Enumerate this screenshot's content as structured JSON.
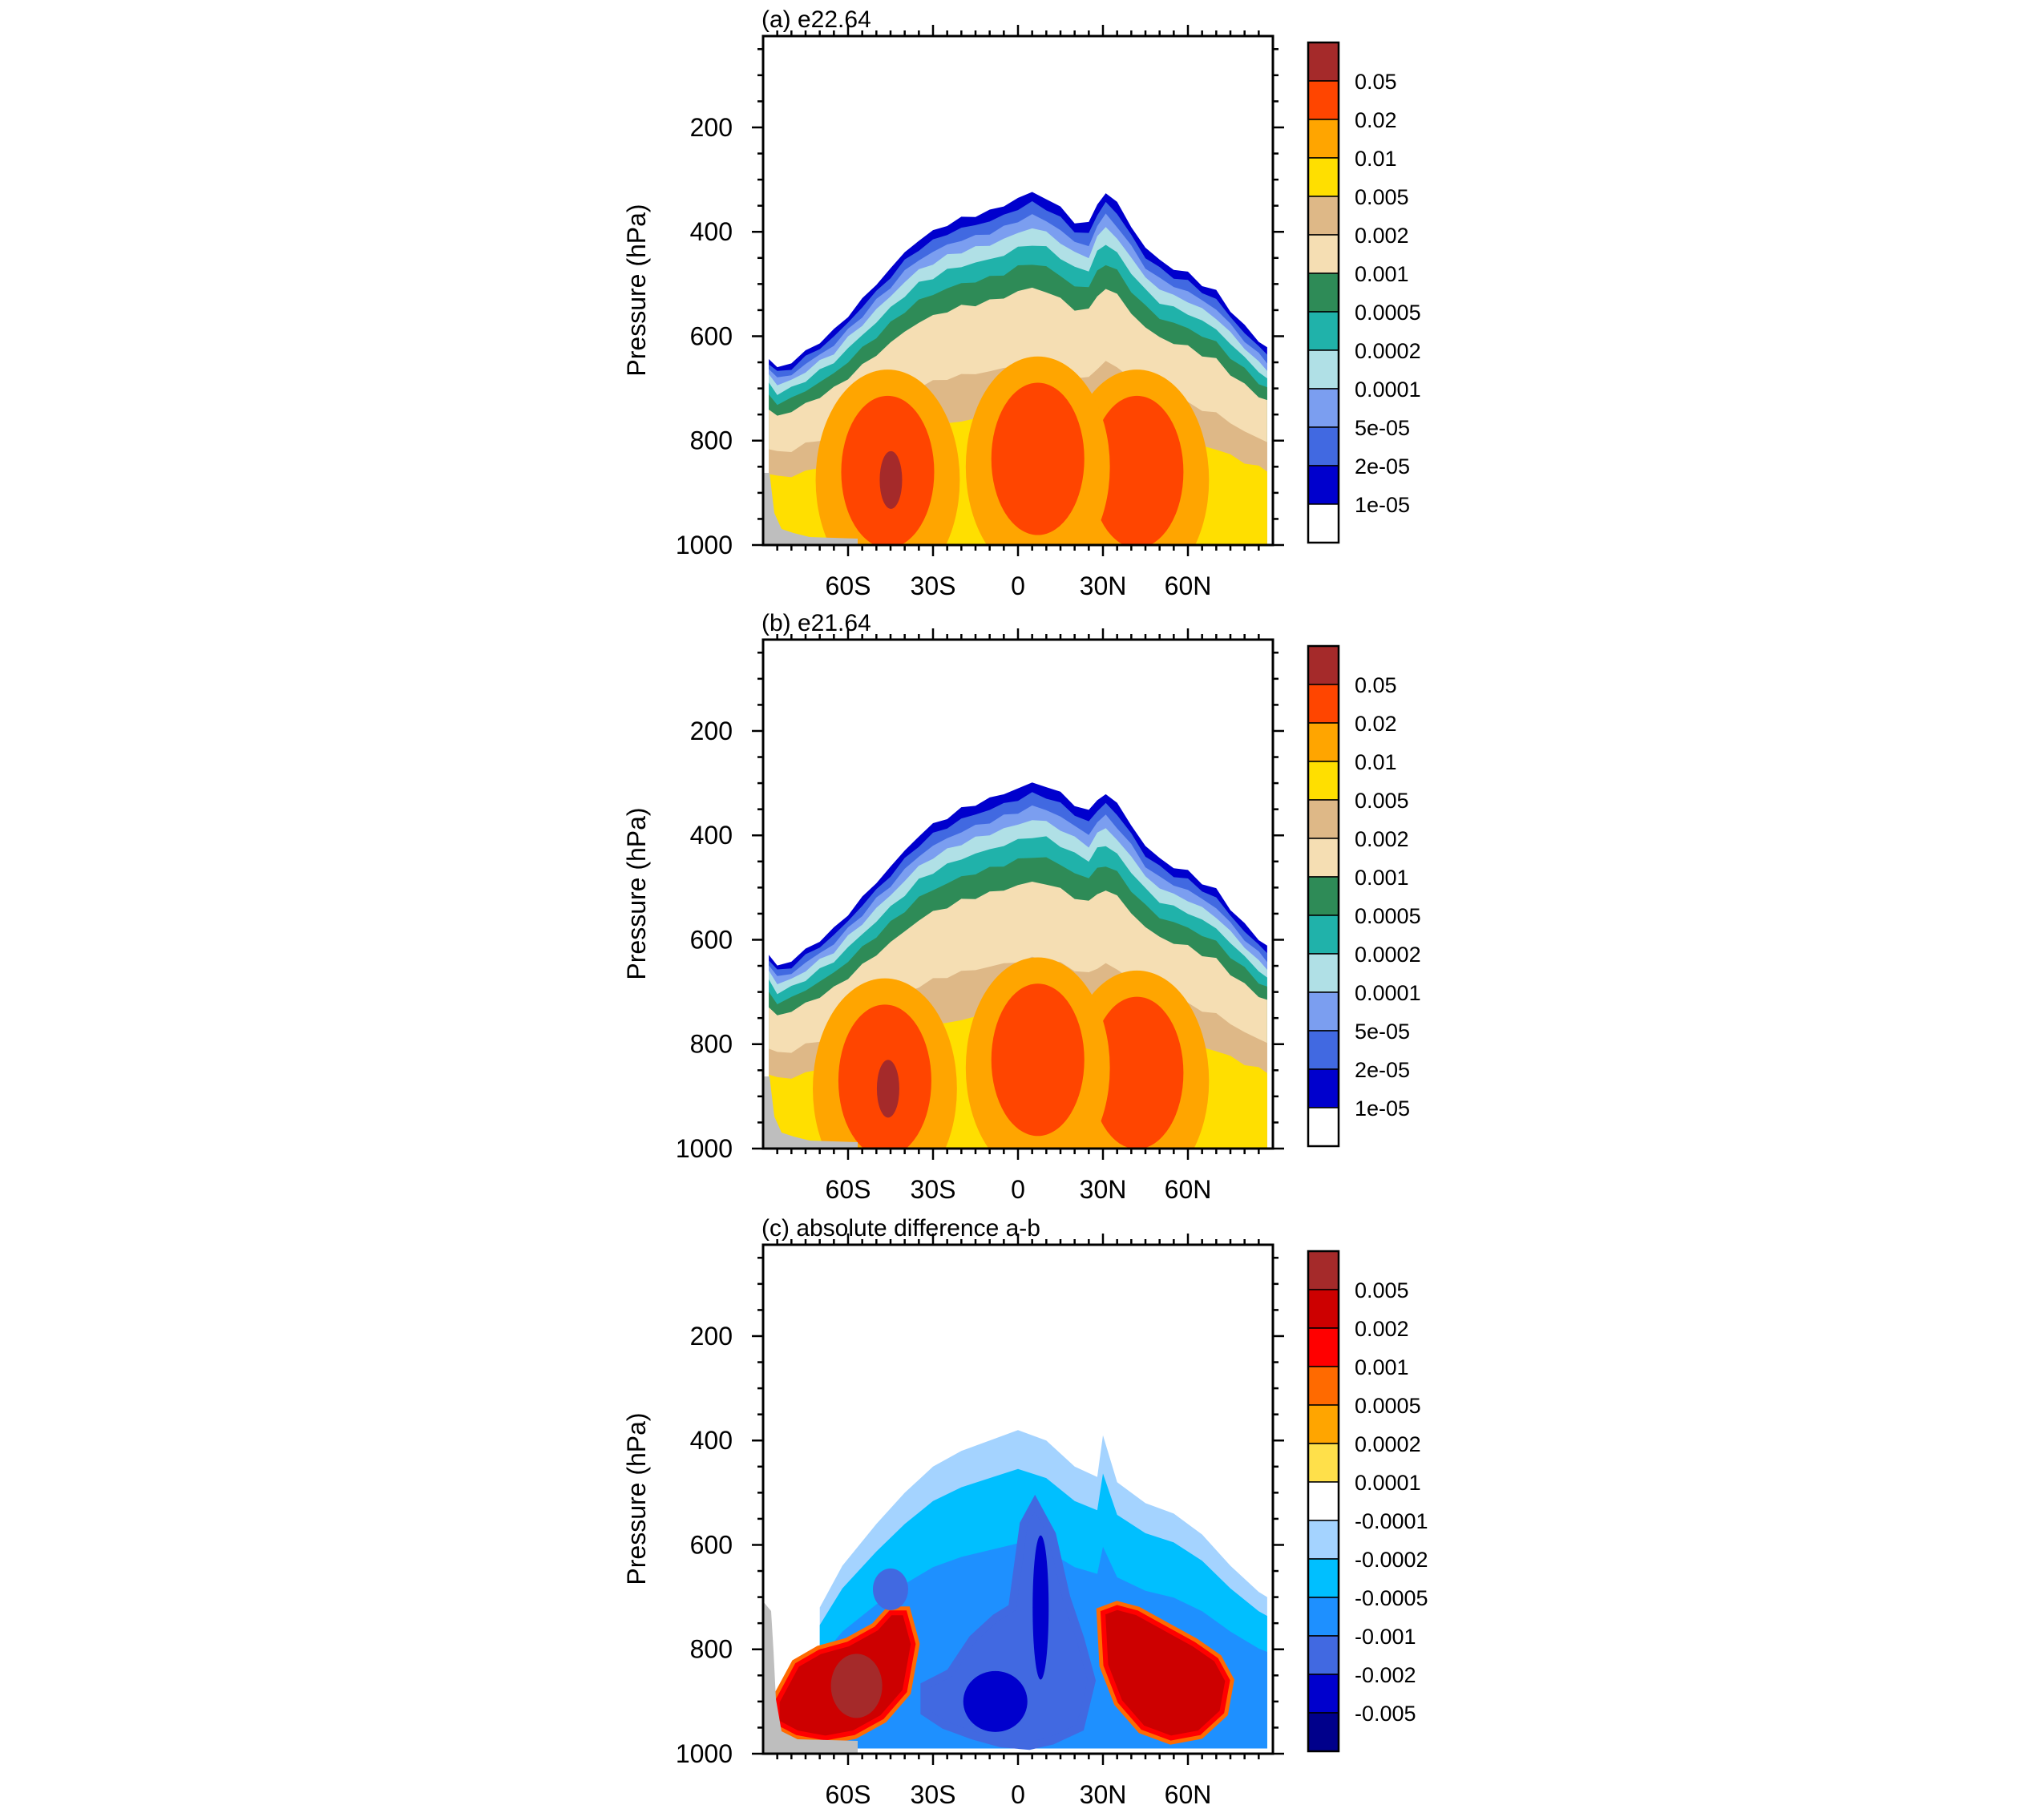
{
  "chart_data": [
    {
      "type": "heatmap",
      "title": "(a) e22.64",
      "ylabel": "Pressure (hPa)",
      "xlabel": "",
      "x_ticks": [
        "60S",
        "30S",
        "0",
        "30N",
        "60N"
      ],
      "x_tick_values": [
        -60,
        -30,
        0,
        30,
        60
      ],
      "xlim": [
        -90,
        90
      ],
      "y_ticks": [
        "200",
        "400",
        "600",
        "800",
        "1000"
      ],
      "y_tick_values": [
        200,
        400,
        600,
        800,
        1000
      ],
      "ylim": [
        25,
        1000
      ],
      "colorbar_labels": [
        "0.05",
        "0.02",
        "0.01",
        "0.005",
        "0.002",
        "0.001",
        "0.0005",
        "0.0002",
        "0.0001",
        "5e-05",
        "2e-05",
        "1e-05"
      ],
      "colorbar_colors": [
        "#a52a2a",
        "#ff4500",
        "#ffa500",
        "#ffdf00",
        "#deb887",
        "#f5deb3",
        "#2e8b57",
        "#20b2aa",
        "#b0e0e6",
        "#7b9ef0",
        "#4169e1",
        "#0000cd",
        "#ffffff"
      ],
      "profile": {
        "lat": [
          -88,
          -85,
          -80,
          -75,
          -70,
          -65,
          -60,
          -55,
          -50,
          -45,
          -40,
          -35,
          -30,
          -25,
          -20,
          -15,
          -10,
          -5,
          0,
          5,
          10,
          15,
          20,
          25,
          28,
          31,
          35,
          40,
          45,
          50,
          55,
          60,
          65,
          70,
          75,
          80,
          85,
          88
        ],
        "top_p": [
          640,
          660,
          650,
          630,
          610,
          590,
          560,
          530,
          500,
          470,
          440,
          415,
          400,
          385,
          375,
          368,
          360,
          350,
          335,
          325,
          335,
          355,
          380,
          385,
          345,
          325,
          345,
          390,
          430,
          455,
          470,
          480,
          500,
          515,
          550,
          580,
          610,
          625
        ]
      },
      "cores": [
        {
          "lat": -46,
          "p": 860,
          "value": "0.05"
        },
        {
          "lat": 42,
          "p": 860,
          "value": "0.02"
        },
        {
          "lat": 7,
          "p": 835,
          "value": "0.02"
        }
      ]
    },
    {
      "type": "heatmap",
      "title": "(b) e21.64",
      "ylabel": "Pressure (hPa)",
      "xlabel": "",
      "x_ticks": [
        "60S",
        "30S",
        "0",
        "30N",
        "60N"
      ],
      "x_tick_values": [
        -60,
        -30,
        0,
        30,
        60
      ],
      "xlim": [
        -90,
        90
      ],
      "y_ticks": [
        "200",
        "400",
        "600",
        "800",
        "1000"
      ],
      "y_tick_values": [
        200,
        400,
        600,
        800,
        1000
      ],
      "ylim": [
        25,
        1000
      ],
      "colorbar_labels": [
        "0.05",
        "0.02",
        "0.01",
        "0.005",
        "0.002",
        "0.001",
        "0.0005",
        "0.0002",
        "0.0001",
        "5e-05",
        "2e-05",
        "1e-05"
      ],
      "colorbar_colors": [
        "#a52a2a",
        "#ff4500",
        "#ffa500",
        "#ffdf00",
        "#deb887",
        "#f5deb3",
        "#2e8b57",
        "#20b2aa",
        "#b0e0e6",
        "#7b9ef0",
        "#4169e1",
        "#0000cd",
        "#ffffff"
      ],
      "profile": {
        "lat": [
          -88,
          -85,
          -80,
          -75,
          -70,
          -65,
          -60,
          -55,
          -50,
          -45,
          -40,
          -35,
          -30,
          -25,
          -20,
          -15,
          -10,
          -5,
          0,
          5,
          10,
          15,
          20,
          25,
          28,
          31,
          35,
          40,
          45,
          50,
          55,
          60,
          65,
          70,
          75,
          80,
          85,
          88
        ],
        "top_p": [
          625,
          650,
          640,
          620,
          600,
          580,
          550,
          520,
          490,
          460,
          430,
          400,
          380,
          365,
          350,
          340,
          330,
          320,
          310,
          300,
          305,
          320,
          340,
          355,
          330,
          320,
          340,
          380,
          420,
          445,
          460,
          470,
          490,
          505,
          540,
          570,
          600,
          615
        ]
      },
      "cores": [
        {
          "lat": -47,
          "p": 870,
          "value": "0.05"
        },
        {
          "lat": 42,
          "p": 855,
          "value": "0.02"
        },
        {
          "lat": 7,
          "p": 830,
          "value": "0.02"
        }
      ]
    },
    {
      "type": "heatmap",
      "title": "(c) absolute difference a-b",
      "ylabel": "Pressure (hPa)",
      "xlabel": "",
      "x_ticks": [
        "60S",
        "30S",
        "0",
        "30N",
        "60N"
      ],
      "x_tick_values": [
        -60,
        -30,
        0,
        30,
        60
      ],
      "xlim": [
        -90,
        90
      ],
      "y_ticks": [
        "200",
        "400",
        "600",
        "800",
        "1000"
      ],
      "y_tick_values": [
        200,
        400,
        600,
        800,
        1000
      ],
      "ylim": [
        25,
        1000
      ],
      "colorbar_labels": [
        "0.005",
        "0.002",
        "0.001",
        "0.0005",
        "0.0002",
        "0.0001",
        "-0.0001",
        "-0.0002",
        "-0.0005",
        "-0.001",
        "-0.002",
        "-0.005"
      ],
      "colorbar_colors": [
        "#a52a2a",
        "#cd0000",
        "#ff0000",
        "#ff6a00",
        "#ffa500",
        "#ffe04a",
        "#ffffff",
        "#a4d3ff",
        "#00bfff",
        "#1e90ff",
        "#4169e1",
        "#0000cd",
        "#00008b"
      ],
      "regions": [
        {
          "value": "0.002",
          "lat": [
            -85,
            -78,
            -70,
            -60,
            -50,
            -45,
            -40,
            -37,
            -40,
            -48,
            -58,
            -68,
            -78,
            -85
          ],
          "p": [
            900,
            830,
            805,
            790,
            760,
            730,
            730,
            790,
            880,
            930,
            960,
            970,
            960,
            940
          ]
        },
        {
          "value": "0.002",
          "lat": [
            30,
            35,
            42,
            52,
            62,
            70,
            74,
            72,
            64,
            54,
            44,
            36,
            31
          ],
          "p": [
            730,
            720,
            730,
            760,
            790,
            820,
            860,
            920,
            960,
            970,
            950,
            900,
            830
          ]
        },
        {
          "value": "-0.002",
          "lat": [
            -33,
            -24,
            -16,
            -8,
            -2,
            2,
            6,
            12,
            17,
            22,
            26,
            22,
            12,
            4,
            -6,
            -16,
            -26,
            -33
          ],
          "p": [
            870,
            845,
            780,
            740,
            720,
            560,
            520,
            580,
            700,
            780,
            860,
            950,
            975,
            985,
            980,
            965,
            945,
            920
          ]
        }
      ]
    }
  ]
}
